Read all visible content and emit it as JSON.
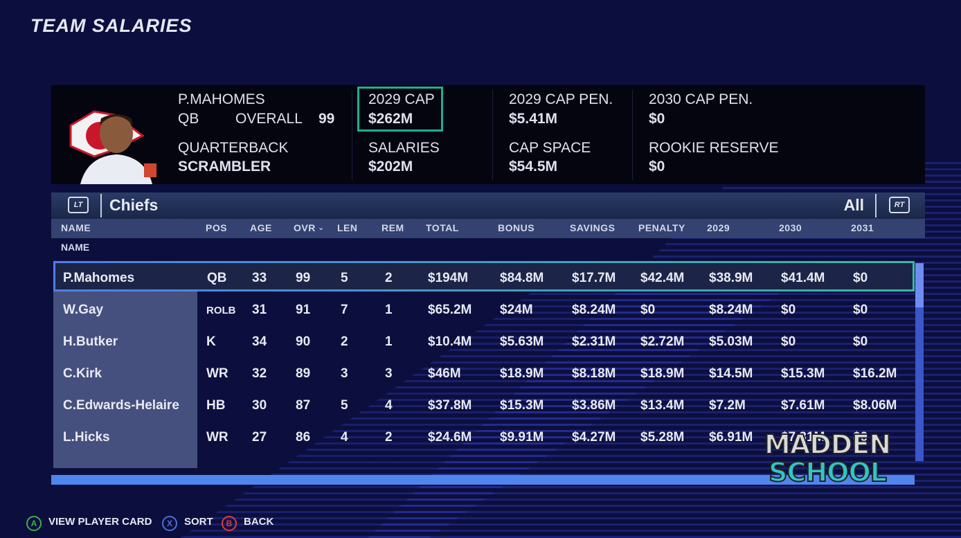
{
  "page_title": "TEAM SALARIES",
  "player": {
    "name": "P.MAHOMES",
    "position": "QB",
    "overall_label": "OVERALL",
    "overall_value": "99",
    "archetype_label": "QUARTERBACK",
    "archetype_value": "SCRAMBLER"
  },
  "cap_stats": {
    "cap_2029_label": "2029 CAP",
    "cap_2029_value": "$262M",
    "cap_pen_2029_label": "2029 CAP PEN.",
    "cap_pen_2029_value": "$5.41M",
    "cap_pen_2030_label": "2030 CAP PEN.",
    "cap_pen_2030_value": "$0",
    "salaries_label": "SALARIES",
    "salaries_value": "$202M",
    "cap_space_label": "CAP SPACE",
    "cap_space_value": "$54.5M",
    "rookie_reserve_label": "ROOKIE RESERVE",
    "rookie_reserve_value": "$0"
  },
  "table": {
    "lt": "LT",
    "rt": "RT",
    "team": "Chiefs",
    "filter": "All",
    "columns": [
      "NAME",
      "POS",
      "AGE",
      "OVR",
      "LEN",
      "REM",
      "TOTAL",
      "BONUS",
      "SAVINGS",
      "PENALTY",
      "2029",
      "2030",
      "2031"
    ],
    "sub_header": "NAME",
    "rows": [
      {
        "name": "P.Mahomes",
        "pos": "QB",
        "age": "33",
        "ovr": "99",
        "len": "5",
        "rem": "2",
        "total": "$194M",
        "bonus": "$84.8M",
        "savings": "$17.7M",
        "penalty": "$42.4M",
        "y2029": "$38.9M",
        "y2030": "$41.4M",
        "y2031": "$0"
      },
      {
        "name": "W.Gay",
        "pos": "ROLB",
        "age": "31",
        "ovr": "91",
        "len": "7",
        "rem": "1",
        "total": "$65.2M",
        "bonus": "$24M",
        "savings": "$8.24M",
        "penalty": "$0",
        "y2029": "$8.24M",
        "y2030": "$0",
        "y2031": "$0"
      },
      {
        "name": "H.Butker",
        "pos": "K",
        "age": "34",
        "ovr": "90",
        "len": "2",
        "rem": "1",
        "total": "$10.4M",
        "bonus": "$5.63M",
        "savings": "$2.31M",
        "penalty": "$2.72M",
        "y2029": "$5.03M",
        "y2030": "$0",
        "y2031": "$0"
      },
      {
        "name": "C.Kirk",
        "pos": "WR",
        "age": "32",
        "ovr": "89",
        "len": "3",
        "rem": "3",
        "total": "$46M",
        "bonus": "$18.9M",
        "savings": "$8.18M",
        "penalty": "$18.9M",
        "y2029": "$14.5M",
        "y2030": "$15.3M",
        "y2031": "$16.2M"
      },
      {
        "name": "C.Edwards-Helaire",
        "pos": "HB",
        "age": "30",
        "ovr": "87",
        "len": "5",
        "rem": "4",
        "total": "$37.8M",
        "bonus": "$15.3M",
        "savings": "$3.86M",
        "penalty": "$13.4M",
        "y2029": "$7.2M",
        "y2030": "$7.61M",
        "y2031": "$8.06M"
      },
      {
        "name": "L.Hicks",
        "pos": "WR",
        "age": "27",
        "ovr": "86",
        "len": "4",
        "rem": "2",
        "total": "$24.6M",
        "bonus": "$9.91M",
        "savings": "$4.27M",
        "penalty": "$5.28M",
        "y2029": "$6.91M",
        "y2030": "$7.31M",
        "y2031": "$0"
      }
    ]
  },
  "watermark": {
    "line1": "MADDEN",
    "line2": "SCHOOL"
  },
  "prompts": {
    "a_glyph": "A",
    "a_label": "VIEW PLAYER CARD",
    "x_glyph": "X",
    "x_label": "SORT",
    "b_glyph": "B",
    "b_label": "BACK"
  },
  "colors": {
    "background": "#0c0f3d",
    "highlight": "#1fae96",
    "accent_blue": "#4f86ee"
  }
}
